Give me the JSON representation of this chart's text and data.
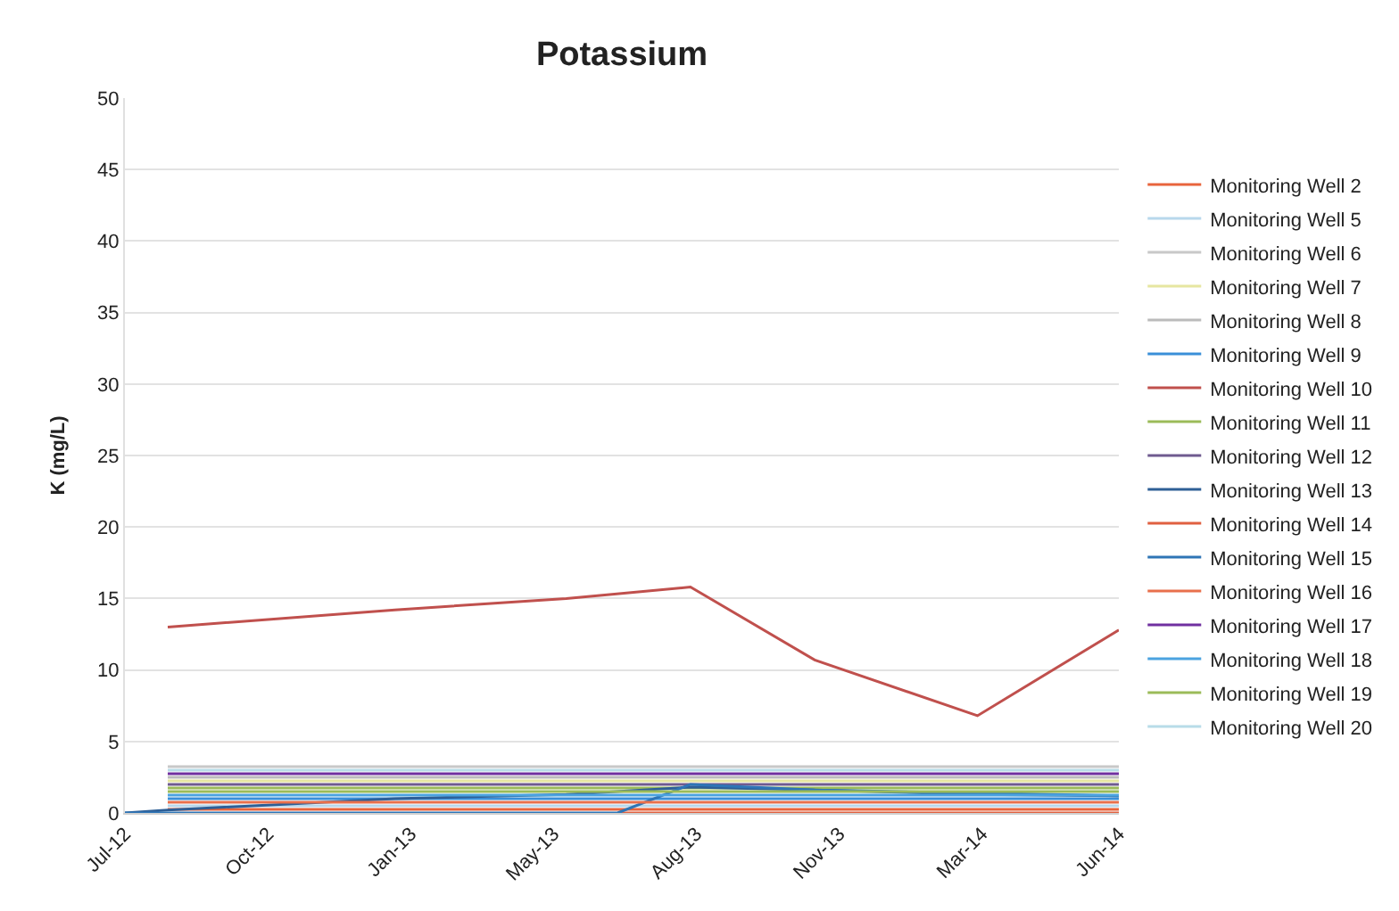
{
  "chart_data": {
    "type": "line",
    "title": "Potassium",
    "ylabel": "K (mg/L)",
    "x": [
      "2012-08-09",
      "2013-01-15",
      "2013-05-15",
      "2013-08-10",
      "2013-11-05",
      "2014-02-27",
      "2014-06-06"
    ],
    "xlim": [
      "2012-07-10",
      "2014-06-06"
    ],
    "xticks": [
      {
        "value": "2012-07-10",
        "label": "Jul-12"
      },
      {
        "value": "2012-10-18",
        "label": "Oct-12"
      },
      {
        "value": "2013-01-26",
        "label": "Jan-13"
      },
      {
        "value": "2013-05-06",
        "label": "May-13"
      },
      {
        "value": "2013-08-14",
        "label": "Aug-13"
      },
      {
        "value": "2013-11-22",
        "label": "Nov-13"
      },
      {
        "value": "2014-03-02",
        "label": "Mar-14"
      },
      {
        "value": "2014-06-06",
        "label": "Jun-14"
      }
    ],
    "ylim": [
      0,
      50
    ],
    "yticks": [
      0,
      5,
      10,
      15,
      20,
      25,
      30,
      35,
      40,
      45,
      50
    ],
    "grid": "y",
    "legend": "right",
    "series": [
      {
        "name": "Monitoring Well 2",
        "color": "#e8643c",
        "values": [
          0.25,
          0.25,
          0.25,
          0.25,
          0.25,
          0.25,
          0.25
        ]
      },
      {
        "name": "Monitoring Well 5",
        "color": "#b8d8ec",
        "values": [
          0.5,
          0.5,
          0.5,
          0.5,
          0.5,
          0.5,
          0.5
        ]
      },
      {
        "name": "Monitoring Well 6",
        "color": "#c8c8c8",
        "values": [
          3.25,
          3.25,
          3.25,
          3.25,
          3.25,
          3.25,
          3.25
        ]
      },
      {
        "name": "Monitoring Well 7",
        "color": "#e6e6a0",
        "values": [
          2.25,
          2.25,
          2.25,
          2.25,
          2.25,
          2.25,
          2.25
        ]
      },
      {
        "name": "Monitoring Well 8",
        "color": "#bbbbbb",
        "values": [
          2.5,
          2.5,
          2.5,
          2.5,
          2.5,
          2.5,
          2.5
        ]
      },
      {
        "name": "Monitoring Well 9",
        "color": "#3a8fd8",
        "values": [
          1.0,
          1.0,
          1.0,
          1.0,
          1.0,
          1.0,
          1.0
        ]
      },
      {
        "name": "Monitoring Well 10",
        "color": "#c0504d",
        "values": [
          13.0,
          14.2,
          15.0,
          15.8,
          10.7,
          6.8,
          12.8
        ]
      },
      {
        "name": "Monitoring Well 11",
        "color": "#9bbb59",
        "values": [
          1.75,
          1.75,
          1.75,
          1.75,
          1.75,
          1.75,
          1.75
        ]
      },
      {
        "name": "Monitoring Well 12",
        "color": "#6f5b8f",
        "values": [
          2.0,
          2.0,
          2.0,
          2.0,
          2.0,
          2.0,
          2.0
        ]
      },
      {
        "name": "Monitoring Well 13",
        "color": "#2e5f96",
        "x": [
          "2012-07-10",
          "2012-08-09",
          "2013-01-15",
          "2013-05-15",
          "2013-08-10",
          "2013-11-05",
          "2014-02-27",
          "2014-06-06"
        ],
        "values": [
          0,
          0.2,
          1.0,
          1.3,
          1.8,
          1.6,
          1.3,
          1.2
        ]
      },
      {
        "name": "Monitoring Well 14",
        "color": "#e06040",
        "x": [
          "2013-06-20",
          "2013-08-10",
          "2013-11-05",
          "2014-02-27",
          "2014-06-06"
        ],
        "values": [
          0,
          0,
          0,
          0,
          0
        ]
      },
      {
        "name": "Monitoring Well 15",
        "color": "#2e75b6",
        "x": [
          "2012-07-10",
          "2012-08-09",
          "2013-01-15",
          "2013-05-15",
          "2013-06-20",
          "2013-08-10",
          "2013-11-05",
          "2014-02-27",
          "2014-06-06"
        ],
        "values": [
          0,
          0,
          0,
          0,
          0,
          2.0,
          1.6,
          1.4,
          1.2
        ]
      },
      {
        "name": "Monitoring Well 16",
        "color": "#e8704c",
        "values": [
          0.75,
          0.75,
          0.75,
          0.75,
          0.75,
          0.75,
          0.75
        ]
      },
      {
        "name": "Monitoring Well 17",
        "color": "#7030a0",
        "values": [
          2.75,
          2.75,
          2.75,
          2.75,
          2.75,
          2.75,
          2.75
        ]
      },
      {
        "name": "Monitoring Well 18",
        "color": "#4ba3e0",
        "values": [
          1.25,
          1.25,
          1.25,
          1.25,
          1.25,
          1.25,
          1.25
        ]
      },
      {
        "name": "Monitoring Well 19",
        "color": "#9bbb59",
        "values": [
          1.5,
          1.5,
          1.5,
          1.5,
          1.5,
          1.5,
          1.5
        ]
      },
      {
        "name": "Monitoring Well 20",
        "color": "#b8dce8",
        "values": [
          3.0,
          3.0,
          3.0,
          3.0,
          3.0,
          3.0,
          3.0
        ]
      }
    ]
  }
}
